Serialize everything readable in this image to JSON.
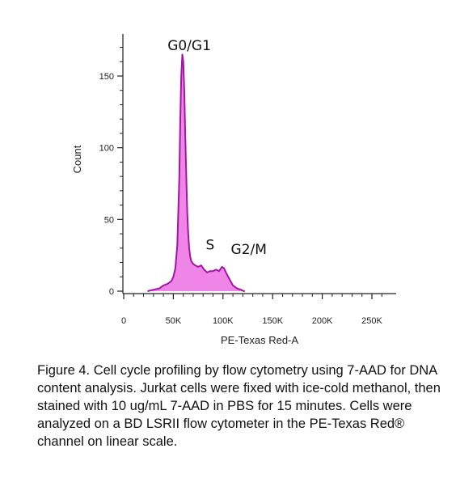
{
  "chart_data": {
    "type": "area",
    "xlabel": "PE-Texas Red-A",
    "ylabel": "Count",
    "xlim": [
      0,
      270000
    ],
    "ylim": [
      0,
      170
    ],
    "x_ticks": [
      {
        "value": 0,
        "label": "0"
      },
      {
        "value": 50000,
        "label": "50K"
      },
      {
        "value": 100000,
        "label": "100K"
      },
      {
        "value": 150000,
        "label": "150K"
      },
      {
        "value": 200000,
        "label": "200K"
      },
      {
        "value": 250000,
        "label": "250K"
      }
    ],
    "y_ticks": [
      {
        "value": 0,
        "label": "0"
      },
      {
        "value": 50,
        "label": "50"
      },
      {
        "value": 100,
        "label": "100"
      },
      {
        "value": 150,
        "label": "150"
      }
    ],
    "series": [
      {
        "x": [
          24000,
          30000,
          36000,
          40000,
          44000,
          48000,
          50000,
          52000,
          54000,
          56000,
          57000,
          58000,
          59000,
          60000,
          61000,
          62000,
          63000,
          64000,
          65000,
          66000,
          67000,
          68000,
          70000,
          72000,
          75000,
          78000,
          81000,
          84000,
          87000,
          90000,
          93000,
          96000,
          99000,
          101000,
          103000,
          106000,
          110000,
          114000,
          118000,
          121000,
          122000
        ],
        "y": [
          0,
          1,
          2,
          4,
          5,
          7,
          10,
          16,
          32,
          80,
          120,
          150,
          165,
          160,
          140,
          110,
          80,
          55,
          40,
          30,
          24,
          21,
          19,
          18,
          17,
          18,
          15,
          13,
          14,
          14,
          15,
          14,
          17,
          16,
          13,
          9,
          4,
          2,
          1,
          0,
          0
        ]
      }
    ],
    "fill_color": "#f085e8",
    "line_color": "#a316a3",
    "annotations": [
      {
        "text": "G0/G1",
        "x": 66000,
        "y": 168
      },
      {
        "text": "S",
        "x": 87000,
        "y": 29
      },
      {
        "text": "G2/M",
        "x": 126000,
        "y": 26
      }
    ],
    "grid": false
  },
  "caption": "Figure 4. Cell cycle profiling by flow cytometry using 7-AAD for DNA content analysis. Jurkat cells were fixed with ice-cold methanol, then stained with 10 ug/mL 7-AAD in PBS for 15 minutes. Cells were analyzed on a BD LSRII flow cytometer in the PE-Texas Red® channel on linear scale."
}
